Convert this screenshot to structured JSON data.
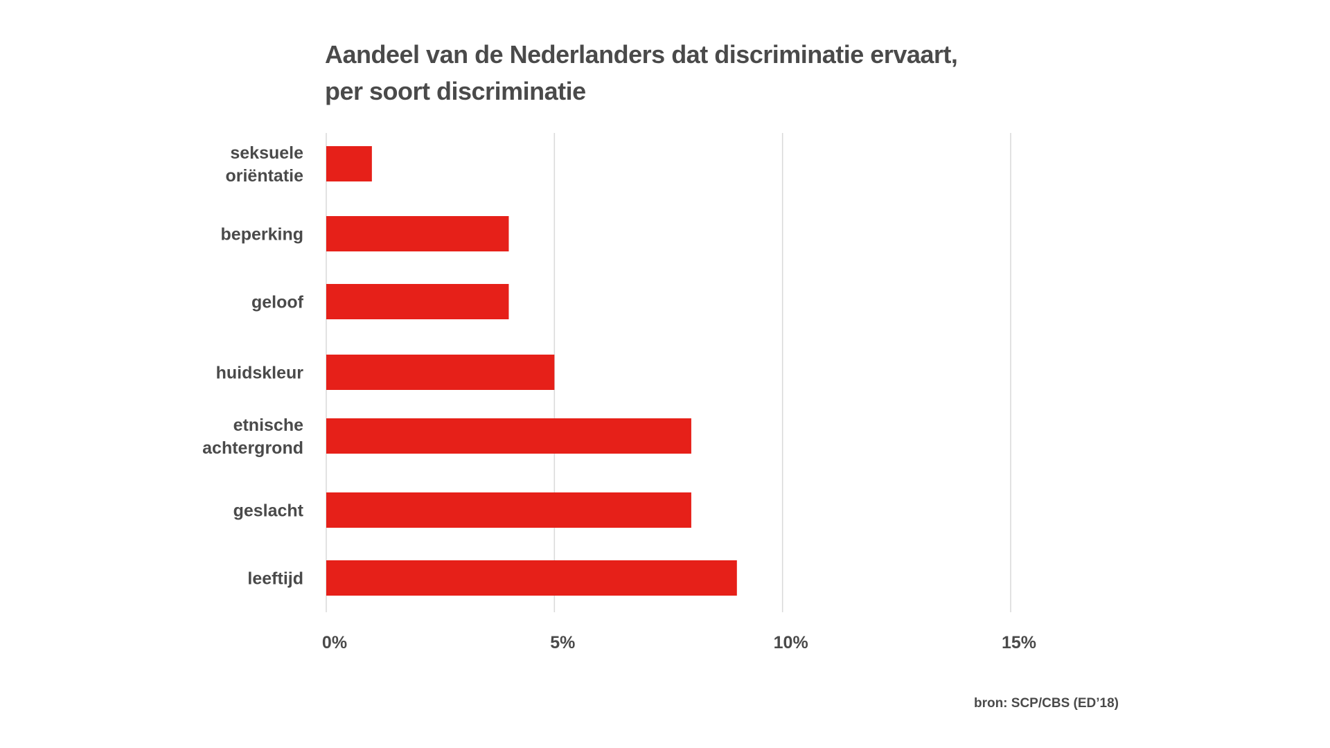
{
  "chart_data": {
    "type": "bar",
    "orientation": "horizontal",
    "title": "Aandeel van de Nederlanders dat discriminatie ervaart,",
    "subtitle": "per soort discriminatie",
    "categories": [
      "seksuele oriëntatie",
      "beperking",
      "geloof",
      "huidskleur",
      "etnische achtergrond",
      "geslacht",
      "leeftijd"
    ],
    "category_lines": [
      [
        "seksuele",
        "oriëntatie"
      ],
      [
        "beperking"
      ],
      [
        "geloof"
      ],
      [
        "huidskleur"
      ],
      [
        "etnische",
        "achtergrond"
      ],
      [
        "geslacht"
      ],
      [
        "leeftijd"
      ]
    ],
    "values": [
      1,
      4,
      4,
      5,
      8,
      8,
      9
    ],
    "unit": "%",
    "xlim": [
      0,
      15
    ],
    "xticks": [
      0,
      5,
      10,
      15
    ],
    "xtick_labels": [
      "0%",
      "5%",
      "10%",
      "15%"
    ],
    "grid": true,
    "bar_color": "#e62019",
    "source": "bron: SCP/CBS (ED’18)"
  }
}
